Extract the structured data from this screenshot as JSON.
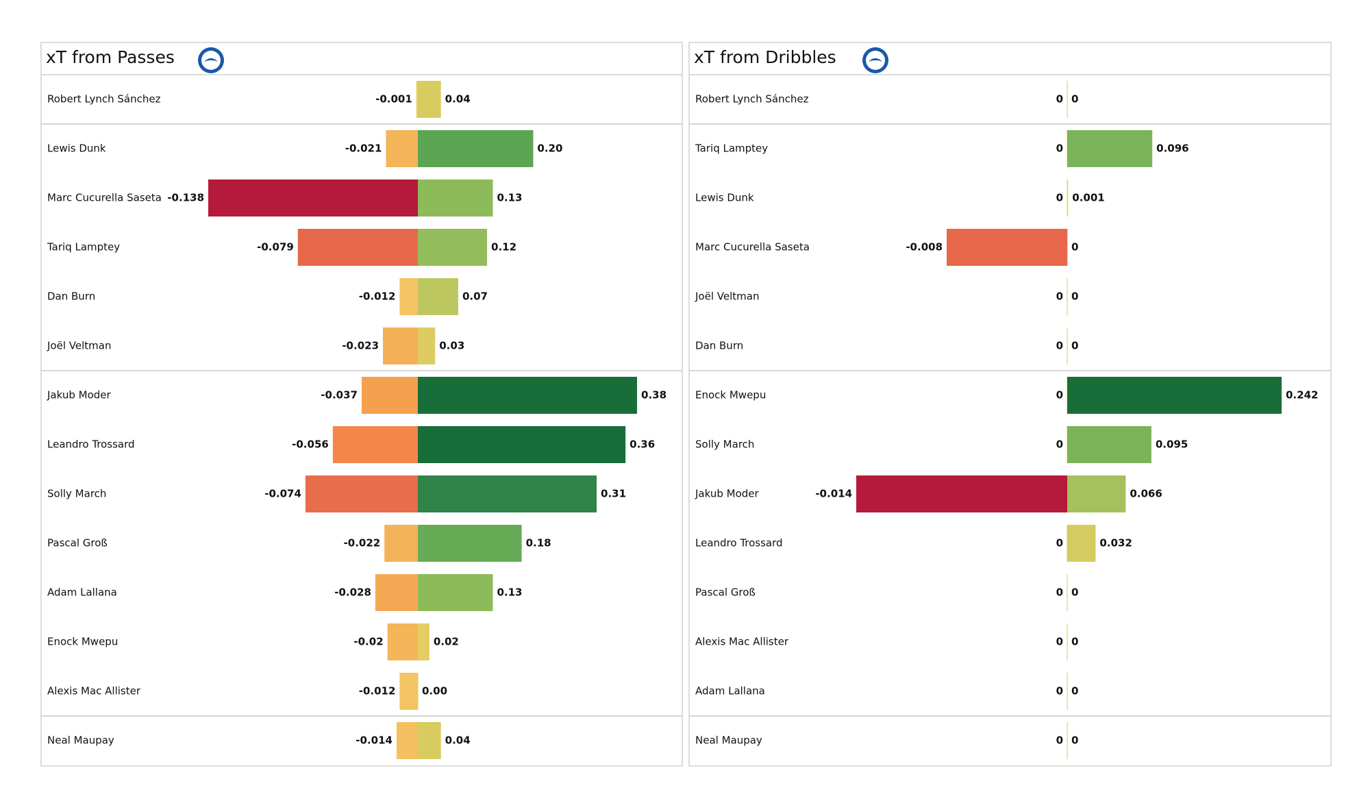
{
  "chart_data": [
    {
      "type": "diverging-bar",
      "title": "xT from Passes",
      "categories": [
        "Robert Lynch Sánchez",
        "Lewis Dunk",
        "Marc Cucurella Saseta",
        "Tariq Lamptey",
        "Dan Burn",
        "Joël Veltman",
        "Jakub Moder",
        "Leandro Trossard",
        "Solly March",
        "Pascal Groß",
        "Adam Lallana",
        "Enock Mwepu",
        "Alexis Mac Allister",
        "Neal Maupay"
      ],
      "series": [
        {
          "values": [
            -0.001,
            -0.021,
            -0.138,
            -0.079,
            -0.012,
            -0.023,
            -0.037,
            -0.056,
            -0.074,
            -0.022,
            -0.028,
            -0.02,
            -0.012,
            -0.014
          ],
          "value_labels": [
            "-0.001",
            "-0.021",
            "-0.138",
            "-0.079",
            "-0.012",
            "-0.023",
            "-0.037",
            "-0.056",
            "-0.074",
            "-0.022",
            "-0.028",
            "-0.02",
            "-0.012",
            "-0.014"
          ],
          "colors": [
            "#f0c862",
            "#f4b459",
            "#b5193c",
            "#e6684a",
            "#f4c462",
            "#f4b057",
            "#f5a04f",
            "#f4864a",
            "#e86d4a",
            "#f4b358",
            "#f5a853",
            "#f4b659",
            "#f4c462",
            "#f4c060"
          ]
        },
        {
          "values": [
            0.04,
            0.2,
            0.13,
            0.12,
            0.07,
            0.03,
            0.38,
            0.36,
            0.31,
            0.18,
            0.13,
            0.02,
            0.0,
            0.04
          ],
          "value_labels": [
            "0.04",
            "0.20",
            "0.13",
            "0.12",
            "0.07",
            "0.03",
            "0.38",
            "0.36",
            "0.31",
            "0.18",
            "0.13",
            "0.02",
            "0.00",
            "0.04"
          ],
          "colors": [
            "#d8cb60",
            "#5ba553",
            "#8dbb5a",
            "#93bd5b",
            "#bdc75f",
            "#ddcc62",
            "#186e39",
            "#186e39",
            "#2f844a",
            "#66ab55",
            "#8dbb5a",
            "#e6cc62",
            "#f0c862",
            "#d8cb60"
          ]
        }
      ],
      "xlim": [
        -0.138,
        0.38
      ]
    },
    {
      "type": "diverging-bar",
      "title": "xT from Dribbles",
      "categories": [
        "Robert Lynch Sánchez",
        "Tariq Lamptey",
        "Lewis Dunk",
        "Marc Cucurella Saseta",
        "Joël Veltman",
        "Dan Burn",
        "Enock Mwepu",
        "Solly March",
        "Jakub Moder",
        "Leandro Trossard",
        "Pascal Groß",
        "Alexis Mac Allister",
        "Adam Lallana",
        "Neal Maupay"
      ],
      "series": [
        {
          "values": [
            0,
            0,
            0,
            -0.008,
            0,
            0,
            0,
            0,
            -0.014,
            0,
            0,
            0,
            0,
            0
          ],
          "colors": [
            "#e8d86a",
            "#e8d86a",
            "#e8d86a",
            "#e6674a",
            "#e8d86a",
            "#e8d86a",
            "#e8d86a",
            "#e8d86a",
            "#b5193c",
            "#e8d86a",
            "#e8d86a",
            "#e8d86a",
            "#e8d86a",
            "#e8d86a"
          ]
        },
        {
          "values": [
            0,
            0.096,
            0.001,
            0,
            0,
            0,
            0.242,
            0.095,
            0.066,
            0.032,
            0,
            0,
            0,
            0
          ],
          "colors": [
            "#e8d86a",
            "#7bb35a",
            "#e8d86a",
            "#e8d86a",
            "#e8d86a",
            "#e8d86a",
            "#186e39",
            "#7bb35a",
            "#a7c05e",
            "#d6cb60",
            "#e8d86a",
            "#e8d86a",
            "#e8d86a",
            "#e8d86a"
          ]
        }
      ],
      "xlim": [
        -0.014,
        0.242
      ]
    }
  ]
}
